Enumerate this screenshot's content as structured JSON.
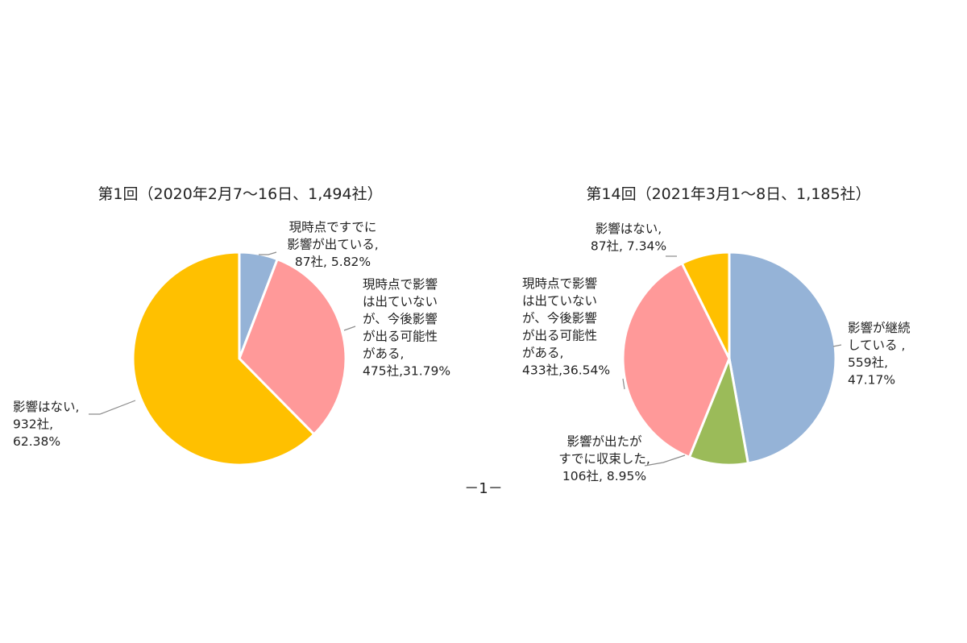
{
  "chart_data": [
    {
      "type": "pie",
      "title": "第1回（2020年2月7～16日、1,494社）",
      "slices": [
        {
          "key": "already",
          "lines": [
            "現時点ですでに",
            "影響が出ている,",
            "87社, 5.82%"
          ],
          "count": 87,
          "percent": 5.82,
          "color": "#95b3d7"
        },
        {
          "key": "possible",
          "lines": [
            "現時点で影響",
            "は出ていない",
            "が、今後影響",
            "が出る可能性",
            "がある,",
            "475社,31.79%"
          ],
          "count": 475,
          "percent": 31.79,
          "color": "#ff9999"
        },
        {
          "key": "none",
          "lines": [
            "影響はない,",
            "932社,",
            "62.38%"
          ],
          "count": 932,
          "percent": 62.38,
          "color": "#ffc000"
        }
      ]
    },
    {
      "type": "pie",
      "title": "第14回（2021年3月1～8日、1,185社）",
      "slices": [
        {
          "key": "continuing",
          "lines": [
            "影響が継続",
            "している ,",
            "559社,",
            "47.17%"
          ],
          "count": 559,
          "percent": 47.17,
          "color": "#95b3d7"
        },
        {
          "key": "converged",
          "lines": [
            "影響が出たが",
            "すでに収束した,",
            "106社, 8.95%"
          ],
          "count": 106,
          "percent": 8.95,
          "color": "#9bbb59"
        },
        {
          "key": "possible",
          "lines": [
            "現時点で影響",
            "は出ていない",
            "が、今後影響",
            "が出る可能性",
            "がある,",
            "433社,36.54%"
          ],
          "count": 433,
          "percent": 36.54,
          "color": "#ff9999"
        },
        {
          "key": "none",
          "lines": [
            "影響はない,",
            "87社, 7.34%"
          ],
          "count": 87,
          "percent": 7.34,
          "color": "#ffc000"
        }
      ]
    }
  ],
  "page_number": "－1－"
}
